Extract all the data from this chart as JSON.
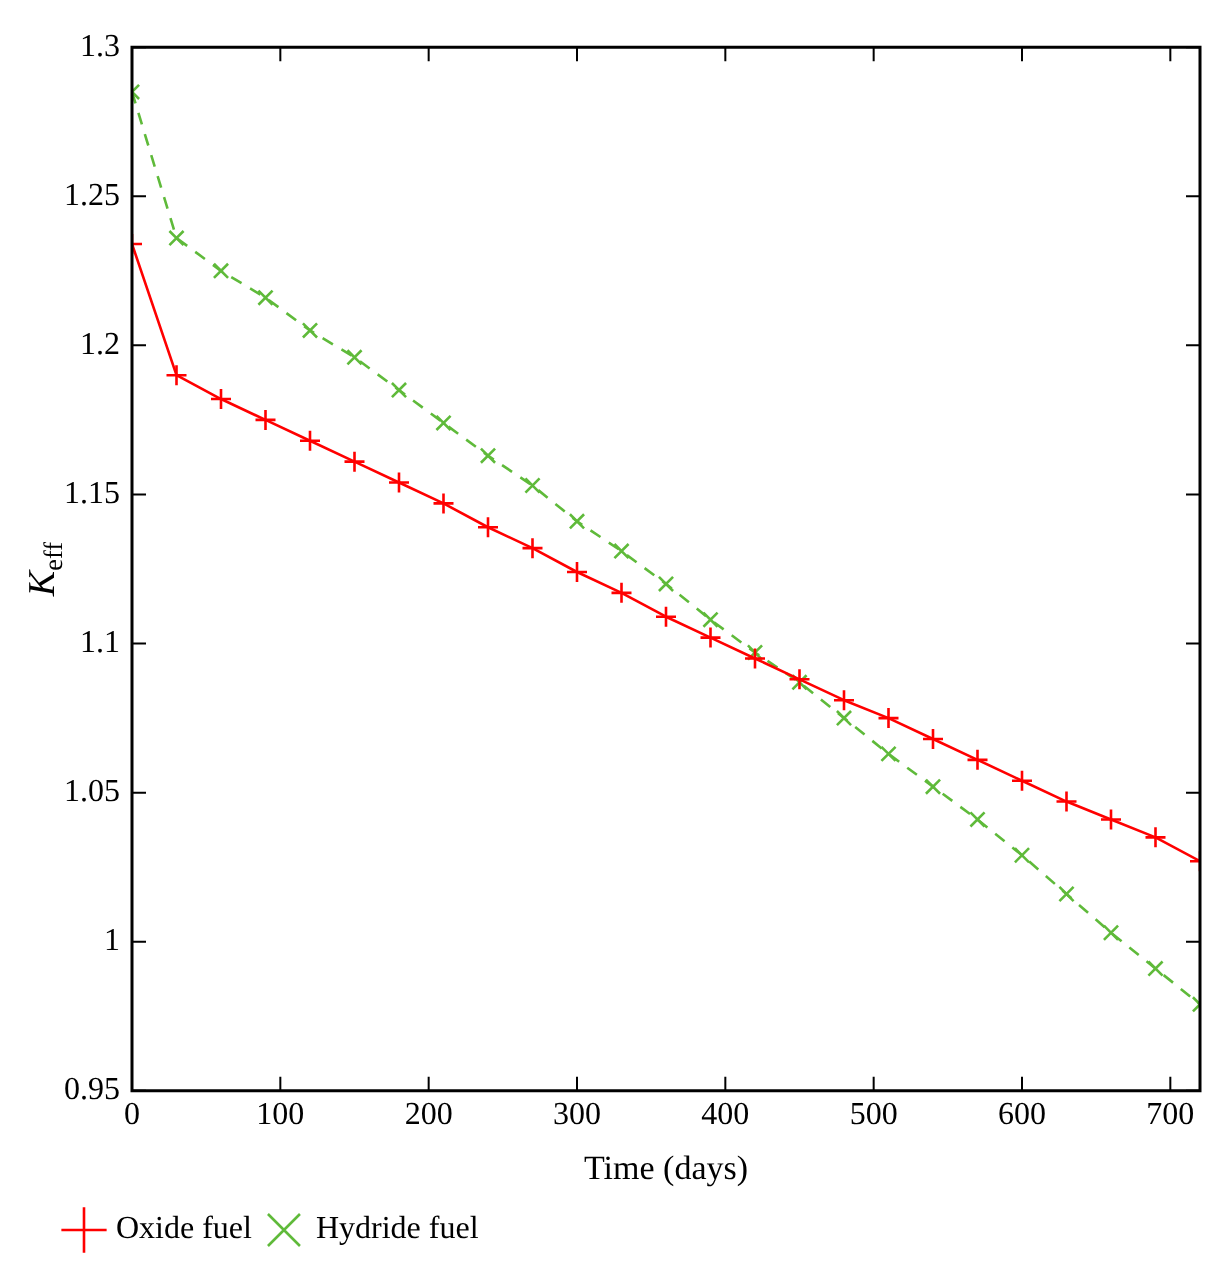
{
  "chart_data": {
    "type": "line",
    "xlabel": "Time (days)",
    "ylabel": "K$_{eff}$",
    "x": [
      0,
      30,
      60,
      90,
      120,
      150,
      180,
      210,
      240,
      270,
      300,
      330,
      360,
      390,
      420,
      450,
      480,
      510,
      540,
      570,
      600,
      630,
      660,
      690,
      720
    ],
    "series": [
      {
        "name": "Oxide fuel",
        "color": "#ff0000",
        "marker": "cross",
        "line_style": "solid",
        "values": [
          1.234,
          1.19,
          1.182,
          1.175,
          1.168,
          1.161,
          1.154,
          1.147,
          1.139,
          1.132,
          1.124,
          1.117,
          1.109,
          1.102,
          1.095,
          1.088,
          1.081,
          1.075,
          1.068,
          1.061,
          1.054,
          1.047,
          1.041,
          1.035,
          1.027
        ]
      },
      {
        "name": "Hydride fuel",
        "color": "#5fba3a",
        "marker": "cross",
        "line_style": "dashed",
        "values": [
          1.285,
          1.236,
          1.225,
          1.216,
          1.205,
          1.196,
          1.185,
          1.174,
          1.163,
          1.153,
          1.141,
          1.131,
          1.12,
          1.108,
          1.097,
          1.087,
          1.075,
          1.063,
          1.052,
          1.041,
          1.029,
          1.016,
          1.003,
          0.991,
          0.979
        ]
      }
    ],
    "xlim": [
      0,
      720
    ],
    "xticks": [
      0,
      100,
      200,
      300,
      400,
      500,
      600,
      700
    ],
    "ylim": [
      0.95,
      1.3
    ],
    "yticks": [
      0.95,
      1,
      1.05,
      1.1,
      1.15,
      1.2,
      1.25,
      1.3
    ],
    "grid": false,
    "legend": "bottom left"
  }
}
